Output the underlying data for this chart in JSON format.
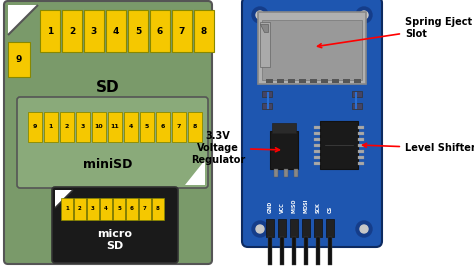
{
  "bg_color": "#ffffff",
  "sd_card": {
    "body_color": "#7a9a6a",
    "border_color": "#555555",
    "pin_color": "#f5c800",
    "pin_border": "#888800"
  },
  "module": {
    "board_color": "#1e56b0",
    "board_dark": "#153d8a",
    "border_color": "#0d2a60"
  },
  "pin_labels": [
    "GND",
    "VCC",
    "MISO",
    "MOSI",
    "SCK",
    "CS"
  ]
}
